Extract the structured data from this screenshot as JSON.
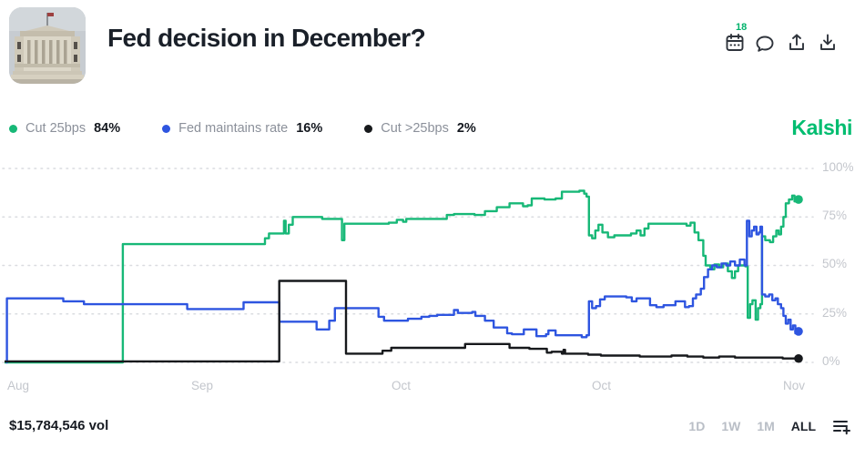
{
  "header": {
    "title": "Fed decision in December?",
    "calendar_badge": "18"
  },
  "brand": {
    "name": "Kalshi",
    "color": "#00bd70"
  },
  "legend": [
    {
      "label": "Cut 25bps",
      "value": "84%",
      "color": "#17b877"
    },
    {
      "label": "Fed maintains rate",
      "value": "16%",
      "color": "#2e55e0"
    },
    {
      "label": "Cut >25bps",
      "value": "2%",
      "color": "#17191c"
    }
  ],
  "chart_data": {
    "type": "line",
    "title": "Fed decision in December?",
    "unit": "percent chance",
    "ylim": [
      0,
      100
    ],
    "grid": "dotted horizontal",
    "legend_position": "top-left",
    "y_axis_labels": [
      "100%",
      "75%",
      "50%",
      "25%",
      "0%"
    ],
    "x_axis_labels": [
      "Aug",
      "Sep",
      "Oct",
      "Oct",
      "Nov"
    ],
    "series": [
      {
        "name": "Cut 25bps",
        "color": "#17b877",
        "current": 84,
        "points": [
          [
            0,
            0
          ],
          [
            14.8,
            0
          ],
          [
            14.9,
            61
          ],
          [
            31.4,
            61
          ],
          [
            32.8,
            64
          ],
          [
            33.3,
            66.5
          ],
          [
            35.1,
            66.5
          ],
          [
            35.2,
            73
          ],
          [
            35.4,
            66.5
          ],
          [
            35.8,
            71
          ],
          [
            36.3,
            75
          ],
          [
            39.6,
            75
          ],
          [
            40.0,
            74
          ],
          [
            42.4,
            74
          ],
          [
            42.5,
            63
          ],
          [
            42.8,
            71.5
          ],
          [
            48.0,
            71.5
          ],
          [
            48.4,
            72
          ],
          [
            49.4,
            73.5
          ],
          [
            50.2,
            72.5
          ],
          [
            50.6,
            74
          ],
          [
            55.5,
            74
          ],
          [
            55.7,
            76
          ],
          [
            56.6,
            76.5
          ],
          [
            58.9,
            76.5
          ],
          [
            59.2,
            76
          ],
          [
            60.5,
            78
          ],
          [
            62.0,
            80
          ],
          [
            63.6,
            82
          ],
          [
            65.3,
            80.5
          ],
          [
            65.9,
            81
          ],
          [
            66.4,
            84.5
          ],
          [
            68.0,
            84
          ],
          [
            69.4,
            84.5
          ],
          [
            70.2,
            88
          ],
          [
            72.4,
            88.5
          ],
          [
            73.0,
            87
          ],
          [
            73.3,
            85.5
          ],
          [
            73.6,
            65.5
          ],
          [
            74.0,
            64
          ],
          [
            74.4,
            68
          ],
          [
            74.8,
            71
          ],
          [
            75.3,
            67
          ],
          [
            76.0,
            64.5
          ],
          [
            76.8,
            65.5
          ],
          [
            78.9,
            66.5
          ],
          [
            79.6,
            68
          ],
          [
            80.1,
            65.5
          ],
          [
            80.6,
            69
          ],
          [
            81.1,
            71.5
          ],
          [
            85.4,
            71.5
          ],
          [
            85.9,
            70.5
          ],
          [
            86.4,
            72
          ],
          [
            86.9,
            67
          ],
          [
            87.4,
            63
          ],
          [
            88.0,
            55
          ],
          [
            88.3,
            50
          ],
          [
            88.9,
            48
          ],
          [
            89.4,
            50.5
          ],
          [
            90.0,
            49
          ],
          [
            90.5,
            51
          ],
          [
            91.1,
            47
          ],
          [
            91.6,
            43.5
          ],
          [
            92.0,
            47
          ],
          [
            92.4,
            50
          ],
          [
            93.3,
            49.5
          ],
          [
            93.6,
            23
          ],
          [
            93.9,
            30
          ],
          [
            94.2,
            32
          ],
          [
            94.6,
            22
          ],
          [
            94.9,
            28
          ],
          [
            95.2,
            30
          ],
          [
            95.4,
            65
          ],
          [
            95.8,
            63
          ],
          [
            96.4,
            62
          ],
          [
            96.8,
            65
          ],
          [
            97.2,
            68
          ],
          [
            97.5,
            66
          ],
          [
            97.8,
            70
          ],
          [
            98.1,
            75
          ],
          [
            98.4,
            82
          ],
          [
            98.8,
            84
          ],
          [
            99.2,
            86
          ],
          [
            99.5,
            83
          ],
          [
            100,
            84
          ]
        ]
      },
      {
        "name": "Fed maintains rate",
        "color": "#2e55e0",
        "current": 16,
        "points": [
          [
            0.2,
            0
          ],
          [
            0.3,
            33
          ],
          [
            7.2,
            33
          ],
          [
            7.4,
            31.5
          ],
          [
            9.9,
            31.5
          ],
          [
            10.0,
            30
          ],
          [
            22.8,
            30
          ],
          [
            23.0,
            27.5
          ],
          [
            30.0,
            27.5
          ],
          [
            30.1,
            31
          ],
          [
            34.5,
            31
          ],
          [
            34.6,
            21
          ],
          [
            39.1,
            21
          ],
          [
            39.3,
            17
          ],
          [
            40.7,
            17
          ],
          [
            40.9,
            21.5
          ],
          [
            41.5,
            21.5
          ],
          [
            41.6,
            28
          ],
          [
            46.9,
            28
          ],
          [
            47.1,
            23.5
          ],
          [
            47.8,
            21.5
          ],
          [
            50.5,
            21.5
          ],
          [
            50.8,
            22.5
          ],
          [
            52.3,
            22.5
          ],
          [
            52.5,
            23.5
          ],
          [
            53.5,
            24
          ],
          [
            54.5,
            24.5
          ],
          [
            56.3,
            24.5
          ],
          [
            56.6,
            27
          ],
          [
            57.1,
            25.5
          ],
          [
            58.9,
            26
          ],
          [
            59.3,
            24
          ],
          [
            60.5,
            21.5
          ],
          [
            61.6,
            18
          ],
          [
            63.3,
            15
          ],
          [
            63.9,
            14.5
          ],
          [
            65.4,
            17
          ],
          [
            66.5,
            17
          ],
          [
            67.0,
            13.5
          ],
          [
            68.2,
            14.5
          ],
          [
            68.5,
            16.5
          ],
          [
            69.1,
            16.5
          ],
          [
            69.4,
            14
          ],
          [
            72.4,
            14
          ],
          [
            72.7,
            13
          ],
          [
            73.3,
            14
          ],
          [
            73.6,
            31.5
          ],
          [
            74.0,
            28
          ],
          [
            74.5,
            29
          ],
          [
            75.0,
            32.5
          ],
          [
            75.6,
            34
          ],
          [
            78.3,
            33.5
          ],
          [
            79.0,
            31.5
          ],
          [
            79.6,
            33
          ],
          [
            80.9,
            33
          ],
          [
            81.3,
            29.5
          ],
          [
            82.1,
            28.5
          ],
          [
            83.0,
            29.5
          ],
          [
            84.1,
            29.5
          ],
          [
            84.5,
            31.5
          ],
          [
            85.2,
            31.5
          ],
          [
            85.7,
            28.5
          ],
          [
            86.2,
            29
          ],
          [
            86.7,
            33
          ],
          [
            87.1,
            35
          ],
          [
            87.7,
            38
          ],
          [
            88.1,
            44
          ],
          [
            88.6,
            48
          ],
          [
            89.1,
            50
          ],
          [
            89.7,
            49
          ],
          [
            90.3,
            51
          ],
          [
            90.9,
            50
          ],
          [
            91.4,
            52
          ],
          [
            92.0,
            50
          ],
          [
            92.6,
            53
          ],
          [
            93.2,
            50
          ],
          [
            93.5,
            73
          ],
          [
            93.8,
            65
          ],
          [
            94.1,
            68
          ],
          [
            94.4,
            70
          ],
          [
            94.7,
            66
          ],
          [
            95.0,
            67
          ],
          [
            95.2,
            70
          ],
          [
            95.4,
            35
          ],
          [
            95.8,
            34
          ],
          [
            96.3,
            35
          ],
          [
            96.7,
            32
          ],
          [
            97.1,
            33
          ],
          [
            97.4,
            30
          ],
          [
            97.8,
            28
          ],
          [
            98.1,
            24
          ],
          [
            98.4,
            20
          ],
          [
            98.7,
            22
          ],
          [
            99.0,
            17
          ],
          [
            99.3,
            19
          ],
          [
            99.6,
            15
          ],
          [
            100,
            16
          ]
        ]
      },
      {
        "name": "Cut >25bps",
        "color": "#17191c",
        "current": 2,
        "points": [
          [
            0,
            0.5
          ],
          [
            34.5,
            0.5
          ],
          [
            34.6,
            42
          ],
          [
            42.9,
            42
          ],
          [
            43.0,
            4.5
          ],
          [
            47.4,
            4.5
          ],
          [
            47.6,
            6
          ],
          [
            48.7,
            7.5
          ],
          [
            57.7,
            7.5
          ],
          [
            58.0,
            9.5
          ],
          [
            63.3,
            9.5
          ],
          [
            63.6,
            7.5
          ],
          [
            65.9,
            7.5
          ],
          [
            66.1,
            7
          ],
          [
            68.3,
            5
          ],
          [
            68.9,
            5.5
          ],
          [
            70.2,
            4.5
          ],
          [
            70.4,
            6.5
          ],
          [
            70.6,
            4.5
          ],
          [
            73.5,
            4
          ],
          [
            75.1,
            3.5
          ],
          [
            78.0,
            3.5
          ],
          [
            80.0,
            3
          ],
          [
            84.0,
            3.5
          ],
          [
            86.0,
            3
          ],
          [
            88.0,
            2.5
          ],
          [
            90.0,
            3
          ],
          [
            92.0,
            2.5
          ],
          [
            95.0,
            2.5
          ],
          [
            98.0,
            2
          ],
          [
            100,
            2
          ]
        ]
      }
    ]
  },
  "footer": {
    "volume": "$15,784,546 vol",
    "ranges": [
      {
        "label": "1D",
        "active": false
      },
      {
        "label": "1W",
        "active": false
      },
      {
        "label": "1M",
        "active": false
      },
      {
        "label": "ALL",
        "active": true
      }
    ]
  }
}
